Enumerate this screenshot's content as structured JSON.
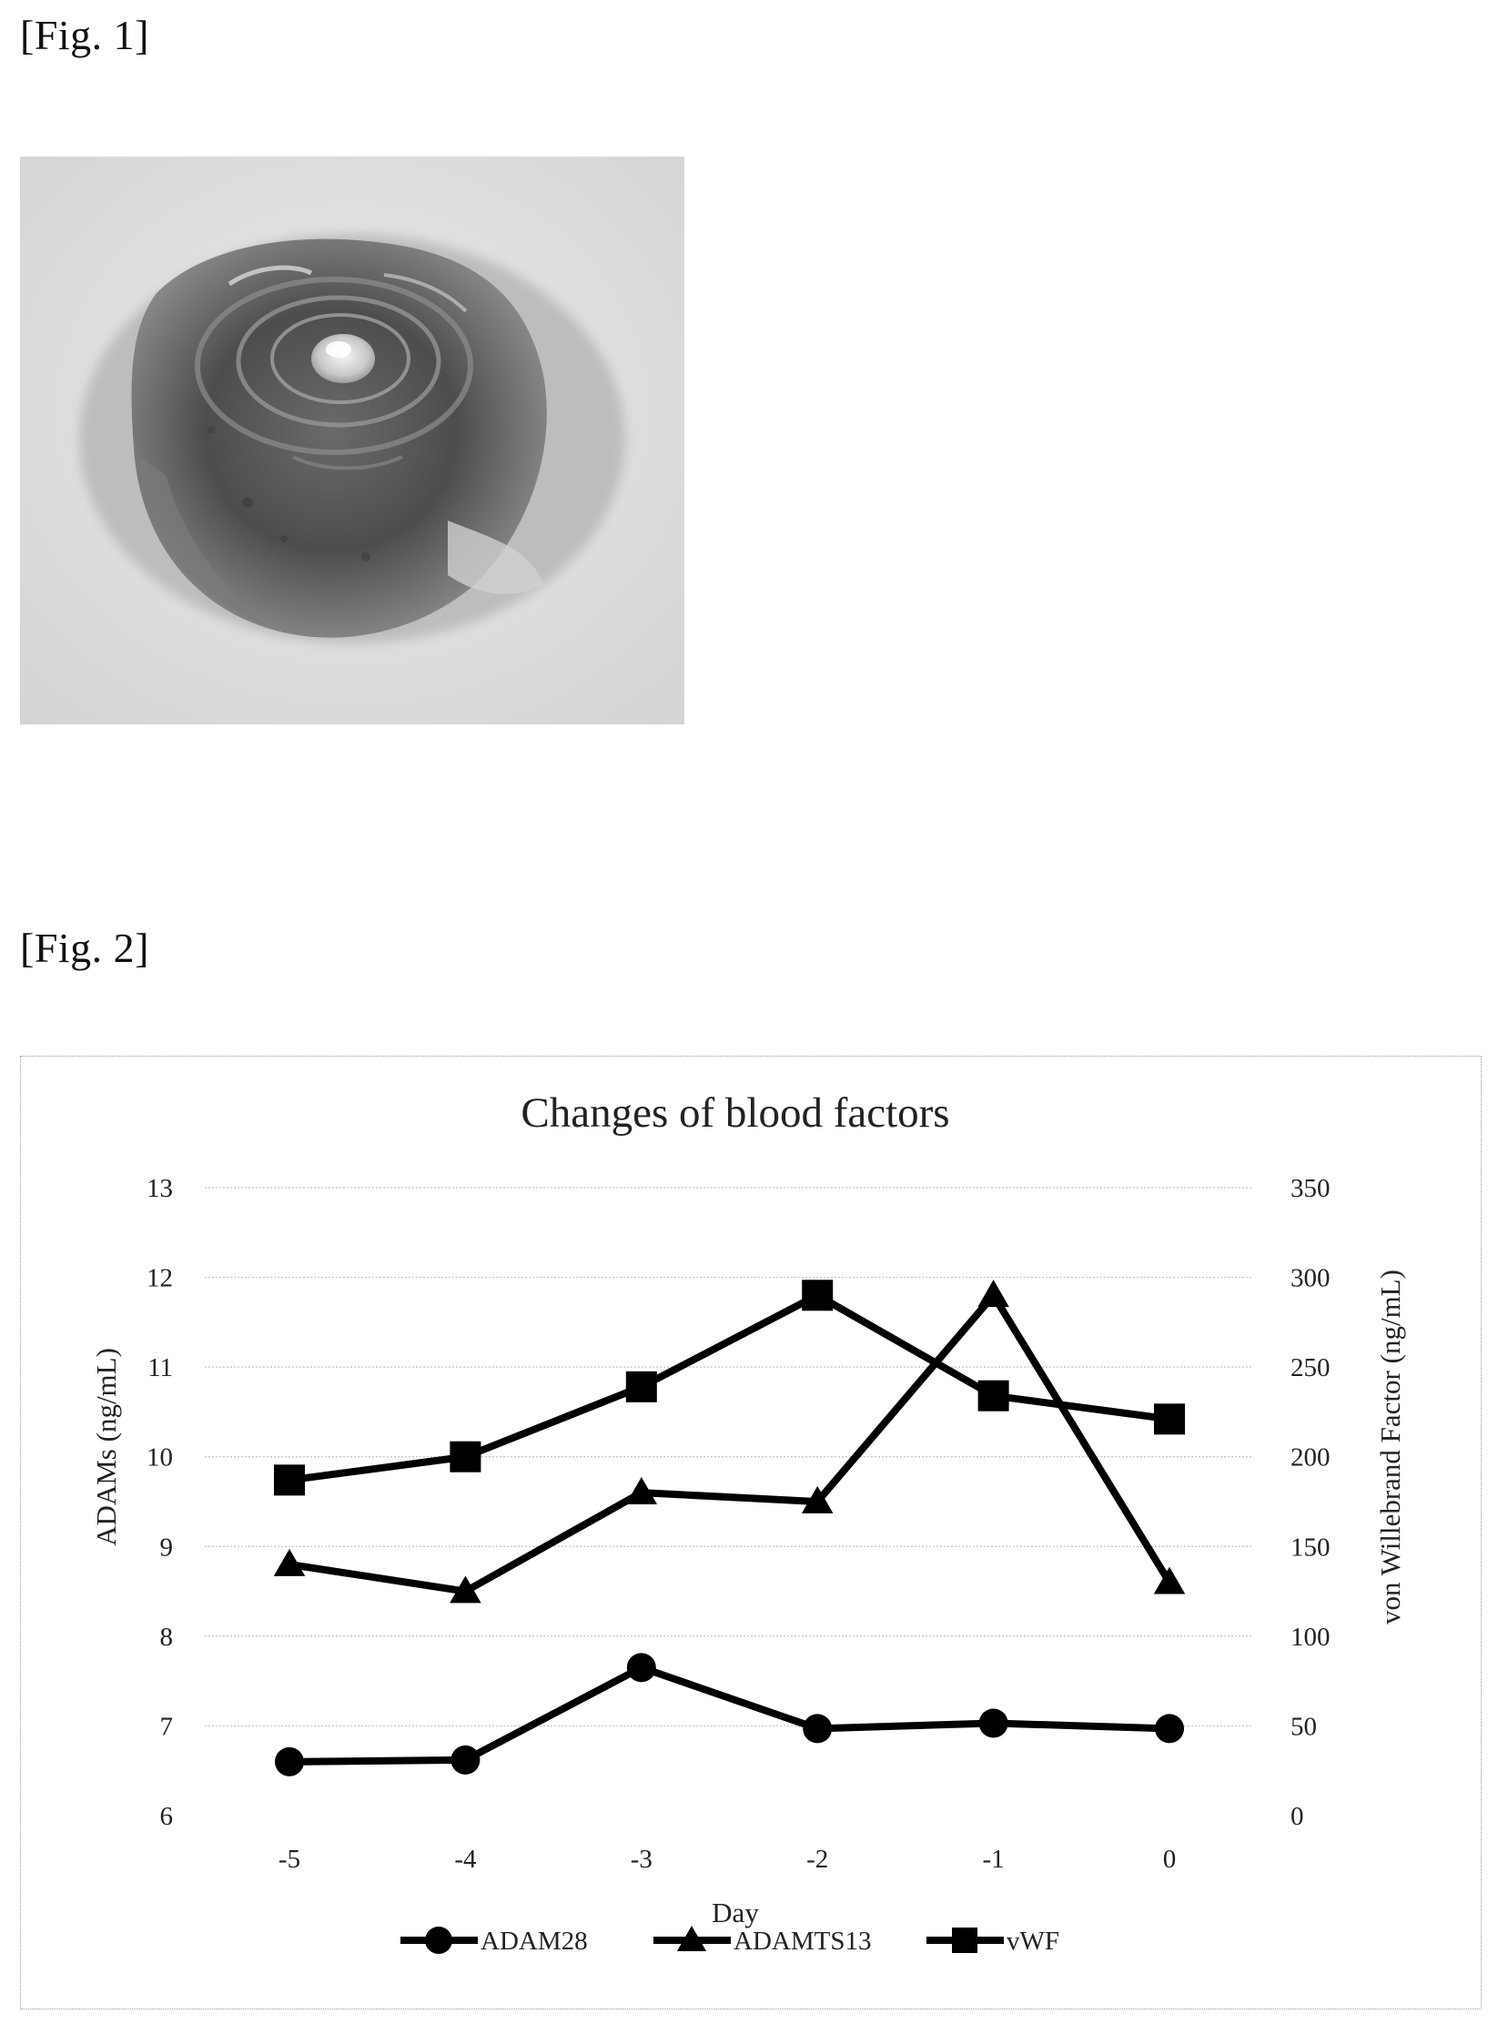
{
  "fig1": {
    "label": "[Fig. 1]"
  },
  "fig2": {
    "label": "[Fig. 2]"
  },
  "chart_data": {
    "type": "line",
    "title": "Changes of blood factors",
    "xlabel": "Day",
    "ylabel_left": "ADAMs (ng/mL)",
    "ylabel_right": "von Willebrand Factor (ng/mL)",
    "categories": [
      "-5",
      "-4",
      "-3",
      "-2",
      "-1",
      "0"
    ],
    "ylim_left": [
      6,
      13
    ],
    "ylim_right": [
      0,
      350
    ],
    "yticks_left": [
      "13",
      "12",
      "11",
      "10",
      "9",
      "8",
      "7",
      "6"
    ],
    "yticks_right": [
      "350",
      "300",
      "250",
      "200",
      "150",
      "100",
      "50",
      "0"
    ],
    "grid": true,
    "legend_position": "bottom",
    "series": [
      {
        "name": "ADAM28",
        "axis": "left",
        "marker": "circle",
        "values": [
          6.6,
          6.62,
          7.65,
          6.97,
          7.03,
          6.97
        ]
      },
      {
        "name": "ADAMTS13",
        "axis": "left",
        "marker": "triangle",
        "values": [
          8.8,
          8.5,
          9.6,
          9.5,
          11.8,
          8.6
        ]
      },
      {
        "name": "vWF",
        "axis": "right",
        "marker": "square",
        "values": [
          187,
          200,
          239,
          290,
          234,
          221
        ]
      }
    ]
  }
}
